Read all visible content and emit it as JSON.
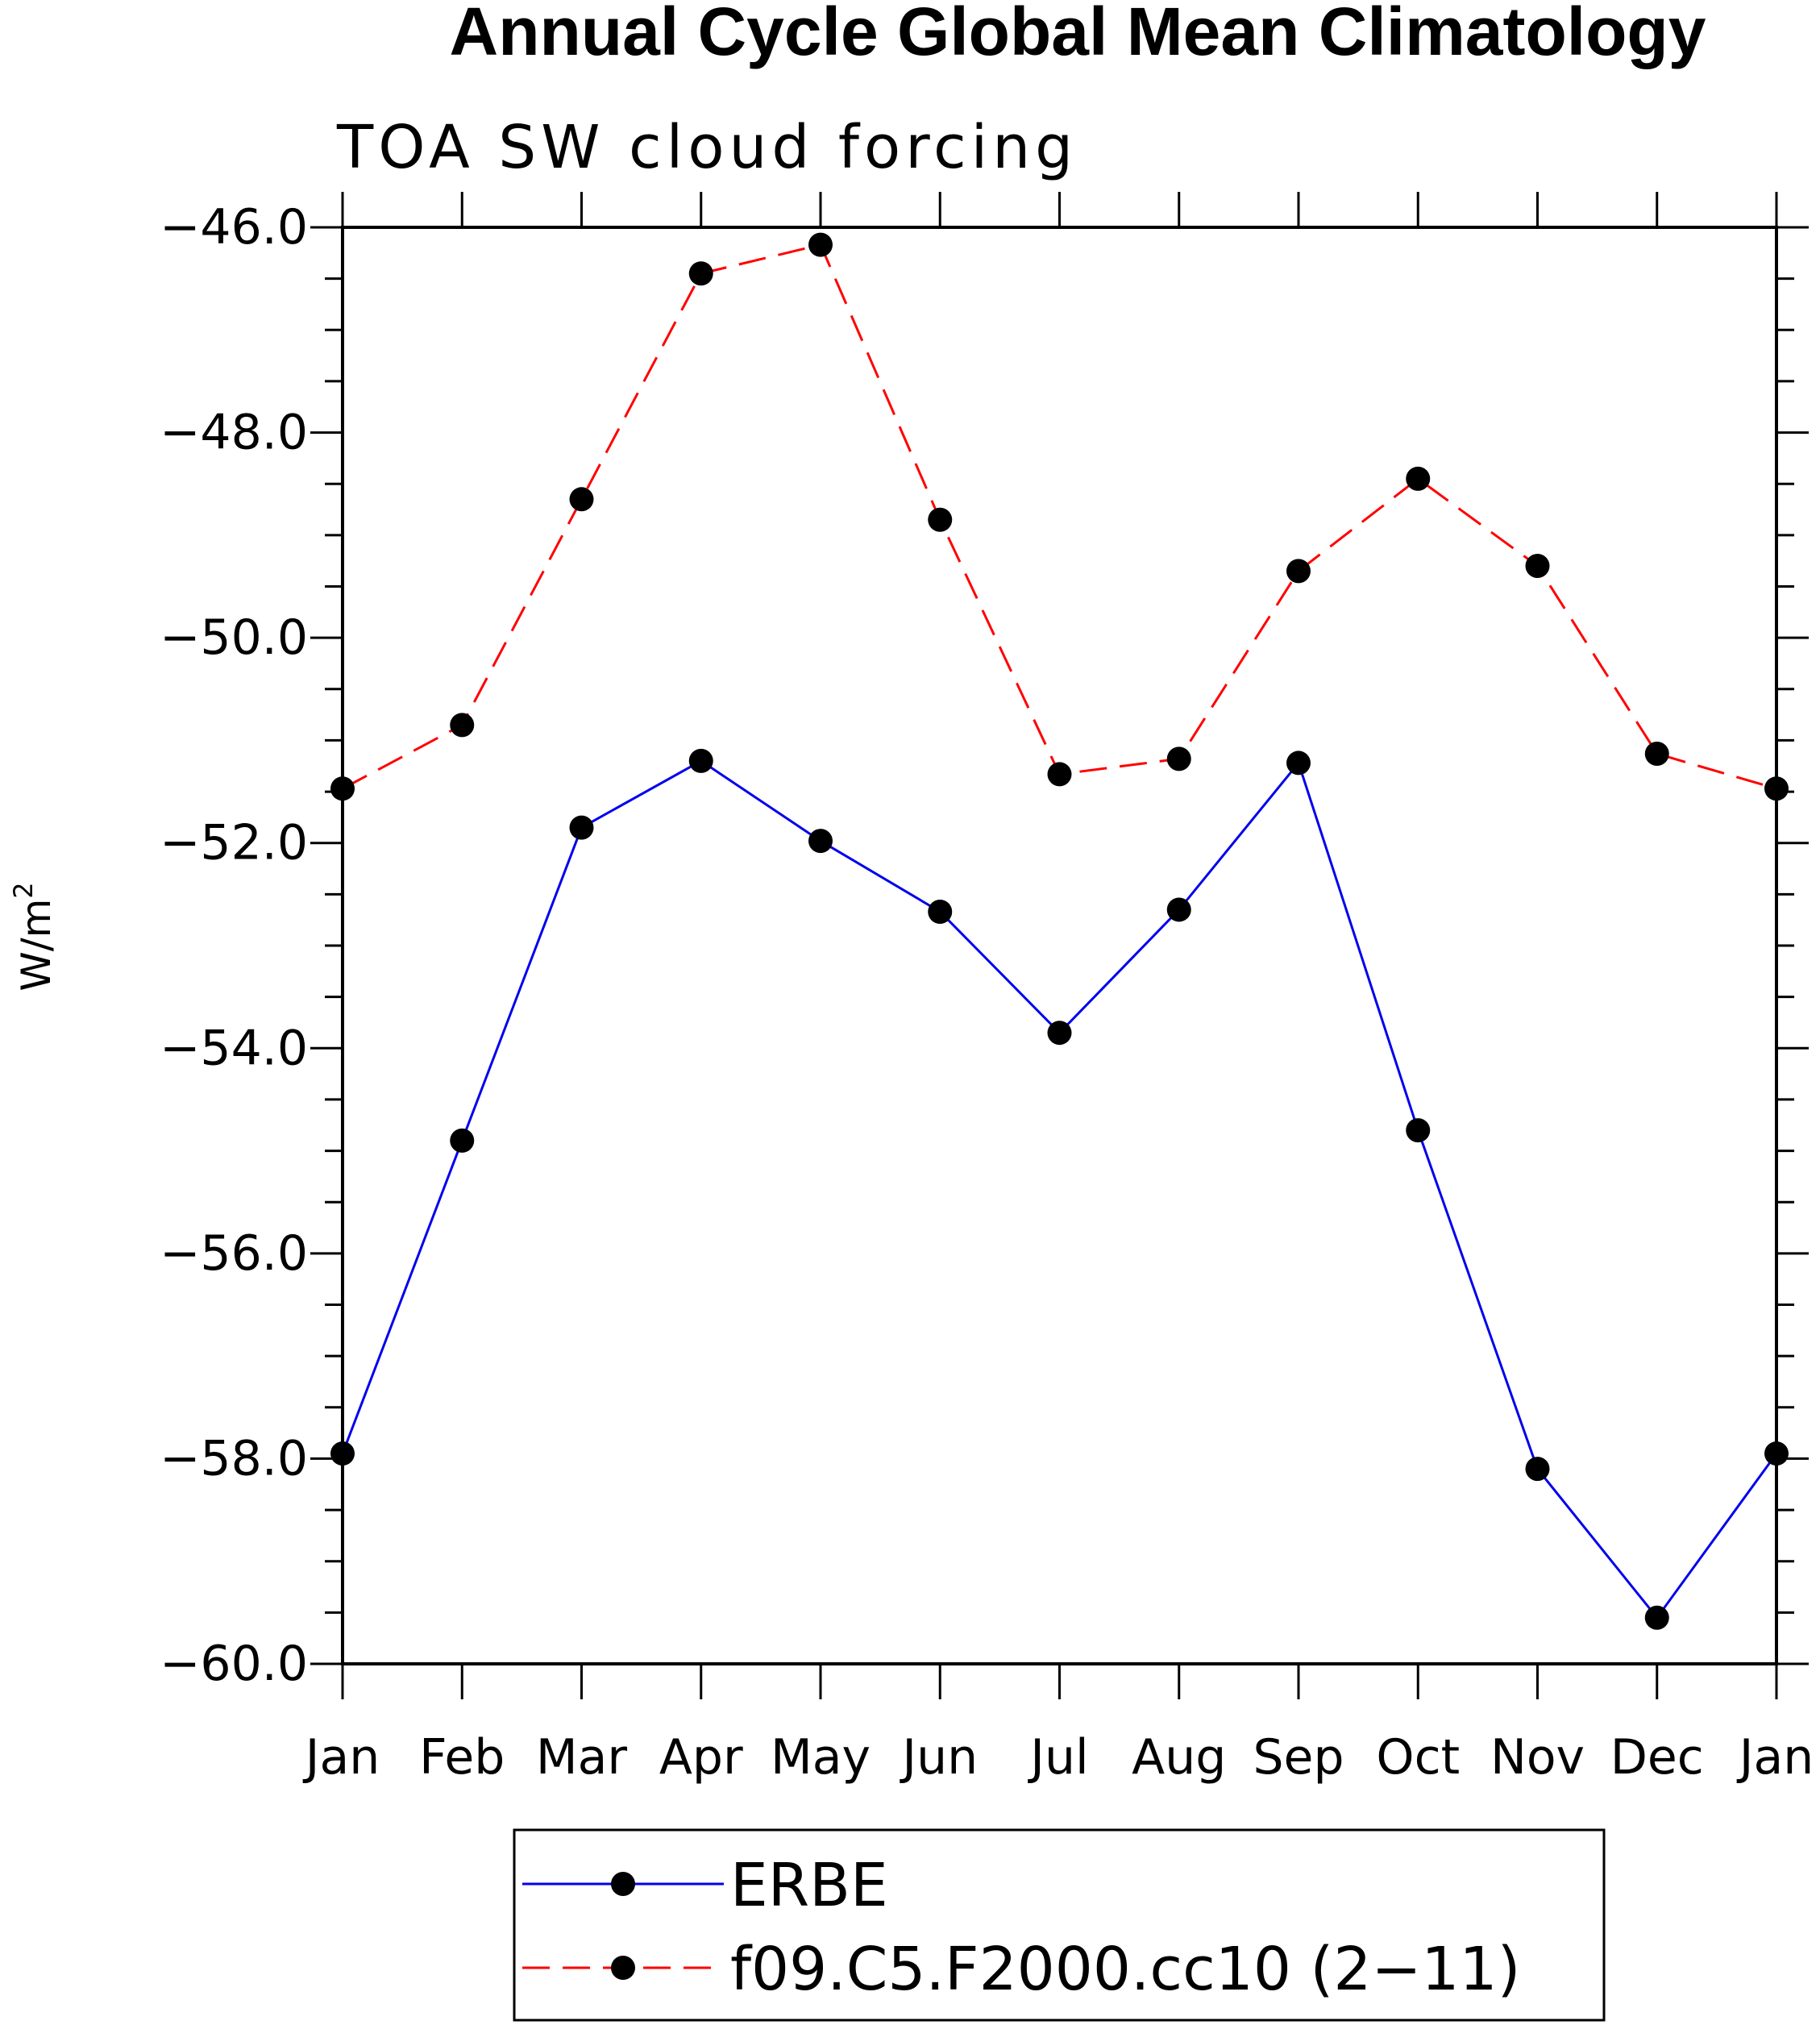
{
  "chart_data": {
    "type": "line",
    "title": "Annual Cycle Global Mean Climatology",
    "subtitle": "TOA SW cloud forcing",
    "ylabel": "W/m",
    "ylabel_superscript": "2",
    "ylim": [
      -60.0,
      -46.0
    ],
    "yticks": [
      "−46.0",
      "−48.0",
      "−50.0",
      "−52.0",
      "−54.0",
      "−56.0",
      "−58.0",
      "−60.0"
    ],
    "categories": [
      "Jan",
      "Feb",
      "Mar",
      "Apr",
      "May",
      "Jun",
      "Jul",
      "Aug",
      "Sep",
      "Oct",
      "Nov",
      "Dec",
      "Jan"
    ],
    "grid": false,
    "legend_position": "bottom",
    "series": [
      {
        "name": "ERBE",
        "color": "#0000ee",
        "style": "solid",
        "marker": "filled-circle",
        "values": [
          -57.95,
          -54.9,
          -51.85,
          -51.2,
          -51.98,
          -52.67,
          -53.85,
          -52.65,
          -51.22,
          -54.8,
          -58.1,
          -59.55,
          -57.95
        ]
      },
      {
        "name": "f09.C5.F2000.cc10 (2−11)",
        "color": "#ff0000",
        "style": "dashed",
        "marker": "filled-circle",
        "values": [
          -51.47,
          -50.85,
          -48.65,
          -46.45,
          -46.17,
          -48.85,
          -51.33,
          -51.18,
          -49.35,
          -48.45,
          -49.3,
          -51.13,
          -51.47
        ]
      }
    ]
  }
}
